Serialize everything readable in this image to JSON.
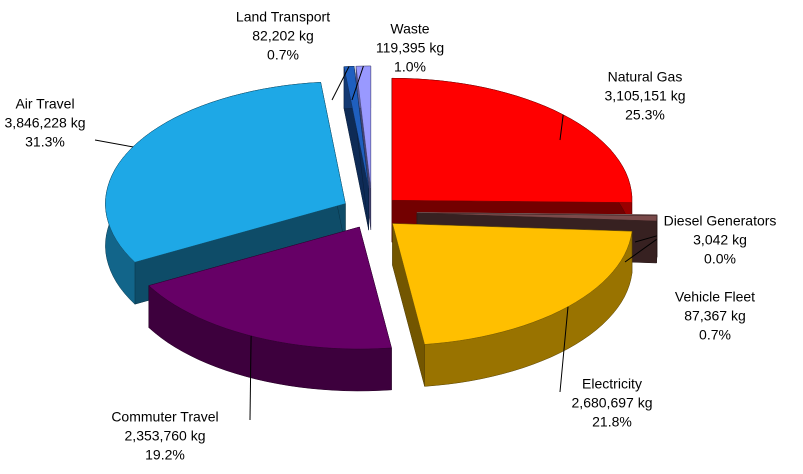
{
  "chart_data": {
    "type": "pie3d",
    "categories": [
      "Natural Gas",
      "Diesel Generators",
      "Vehicle Fleet",
      "Electricity",
      "Commuter Travel",
      "Air Travel",
      "Land Transport",
      "Waste"
    ],
    "values": [
      3105151,
      3042,
      87367,
      2680697,
      2353760,
      3846228,
      82202,
      119395
    ],
    "value_labels": [
      "3,105,151 kg",
      "3,042 kg",
      "87,367 kg",
      "2,680,697 kg",
      "2,353,760 kg",
      "3,846,228 kg",
      "82,202 kg",
      "119,395 kg"
    ],
    "percent_labels": [
      "25.3%",
      "0.0%",
      "0.7%",
      "21.8%",
      "19.2%",
      "31.3%",
      "0.7%",
      "1.0%"
    ],
    "colors": [
      "#ff0000",
      "#f4b8b8",
      "#7a4a4a",
      "#ffbf00",
      "#660066",
      "#1ea8e6",
      "#1f5fbf",
      "#9999ff"
    ]
  }
}
